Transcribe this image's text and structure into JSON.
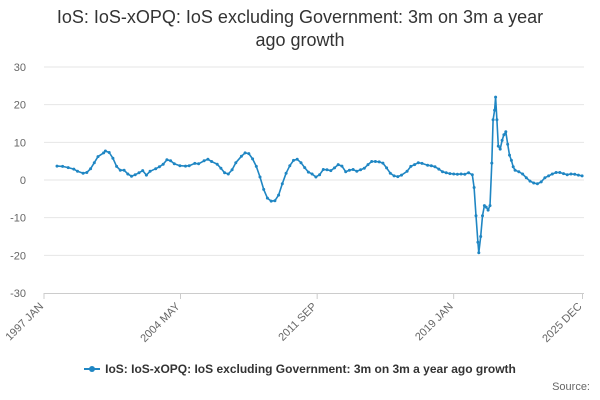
{
  "chart_data": {
    "type": "line",
    "title": "IoS: IoS-xOPQ: IoS excluding Government: 3m on 3m a year ago growth",
    "xlabel": "",
    "ylabel": "",
    "ylim": [
      -30,
      30
    ],
    "y_ticks": [
      30,
      20,
      10,
      0,
      -10,
      -20,
      -30
    ],
    "x_range": [
      1997.0,
      2026.0
    ],
    "x_ticks": [
      {
        "label": "1997 JAN",
        "x": 1997.0
      },
      {
        "label": "2004 MAY",
        "x": 2004.33
      },
      {
        "label": "2011 SEP",
        "x": 2011.67
      },
      {
        "label": "2019 JAN",
        "x": 2019.0
      },
      {
        "label": "2025 DEC",
        "x": 2025.92
      }
    ],
    "grid": true,
    "color": "#1f86c3",
    "series": [
      {
        "name": "IoS: IoS-xOPQ: IoS excluding Government: 3m on 3m a year ago growth",
        "points": [
          [
            1997.7,
            3.7
          ],
          [
            1998.0,
            3.6
          ],
          [
            1998.3,
            3.3
          ],
          [
            1998.6,
            2.9
          ],
          [
            1998.8,
            2.3
          ],
          [
            1999.1,
            1.8
          ],
          [
            1999.3,
            2.0
          ],
          [
            1999.5,
            3.0
          ],
          [
            1999.7,
            4.6
          ],
          [
            1999.9,
            6.2
          ],
          [
            2000.2,
            7.2
          ],
          [
            2000.3,
            7.7
          ],
          [
            2000.5,
            7.3
          ],
          [
            2000.7,
            5.8
          ],
          [
            2000.9,
            3.6
          ],
          [
            2001.1,
            2.6
          ],
          [
            2001.3,
            2.6
          ],
          [
            2001.5,
            1.6
          ],
          [
            2001.7,
            1.0
          ],
          [
            2001.9,
            1.4
          ],
          [
            2002.1,
            1.9
          ],
          [
            2002.3,
            2.5
          ],
          [
            2002.5,
            1.3
          ],
          [
            2002.7,
            2.3
          ],
          [
            2003.0,
            3.0
          ],
          [
            2003.2,
            3.5
          ],
          [
            2003.4,
            4.2
          ],
          [
            2003.6,
            5.4
          ],
          [
            2003.8,
            5.1
          ],
          [
            2004.0,
            4.3
          ],
          [
            2004.3,
            3.8
          ],
          [
            2004.6,
            3.7
          ],
          [
            2004.8,
            3.8
          ],
          [
            2005.1,
            4.4
          ],
          [
            2005.3,
            4.3
          ],
          [
            2005.6,
            5.1
          ],
          [
            2005.8,
            5.5
          ],
          [
            2006.0,
            4.9
          ],
          [
            2006.3,
            4.2
          ],
          [
            2006.5,
            3.1
          ],
          [
            2006.7,
            1.9
          ],
          [
            2006.9,
            1.6
          ],
          [
            2007.1,
            2.7
          ],
          [
            2007.3,
            4.6
          ],
          [
            2007.6,
            6.3
          ],
          [
            2007.8,
            7.2
          ],
          [
            2008.0,
            7.0
          ],
          [
            2008.2,
            5.6
          ],
          [
            2008.4,
            3.6
          ],
          [
            2008.6,
            0.8
          ],
          [
            2008.8,
            -2.5
          ],
          [
            2009.0,
            -4.8
          ],
          [
            2009.2,
            -5.6
          ],
          [
            2009.4,
            -5.5
          ],
          [
            2009.6,
            -4.0
          ],
          [
            2009.8,
            -1.0
          ],
          [
            2010.0,
            1.8
          ],
          [
            2010.2,
            3.8
          ],
          [
            2010.4,
            5.2
          ],
          [
            2010.6,
            5.5
          ],
          [
            2010.8,
            4.6
          ],
          [
            2011.0,
            3.3
          ],
          [
            2011.2,
            2.1
          ],
          [
            2011.4,
            1.6
          ],
          [
            2011.6,
            0.8
          ],
          [
            2011.8,
            1.4
          ],
          [
            2012.0,
            2.8
          ],
          [
            2012.2,
            2.7
          ],
          [
            2012.4,
            2.5
          ],
          [
            2012.6,
            3.2
          ],
          [
            2012.8,
            4.1
          ],
          [
            2013.0,
            3.7
          ],
          [
            2013.2,
            2.2
          ],
          [
            2013.4,
            2.6
          ],
          [
            2013.6,
            2.8
          ],
          [
            2013.8,
            2.3
          ],
          [
            2014.0,
            2.7
          ],
          [
            2014.2,
            3.1
          ],
          [
            2014.4,
            4.1
          ],
          [
            2014.6,
            4.9
          ],
          [
            2014.8,
            4.9
          ],
          [
            2015.0,
            4.8
          ],
          [
            2015.2,
            4.5
          ],
          [
            2015.4,
            3.2
          ],
          [
            2015.6,
            1.8
          ],
          [
            2015.8,
            1.1
          ],
          [
            2016.0,
            0.9
          ],
          [
            2016.2,
            1.3
          ],
          [
            2016.5,
            2.3
          ],
          [
            2016.7,
            3.6
          ],
          [
            2016.9,
            4.1
          ],
          [
            2017.1,
            4.6
          ],
          [
            2017.3,
            4.4
          ],
          [
            2017.6,
            3.9
          ],
          [
            2017.8,
            3.8
          ],
          [
            2018.0,
            3.5
          ],
          [
            2018.2,
            2.9
          ],
          [
            2018.4,
            2.2
          ],
          [
            2018.6,
            1.9
          ],
          [
            2018.8,
            1.7
          ],
          [
            2019.0,
            1.6
          ],
          [
            2019.2,
            1.5
          ],
          [
            2019.4,
            1.6
          ],
          [
            2019.6,
            1.5
          ],
          [
            2019.8,
            1.9
          ],
          [
            2020.0,
            1.4
          ],
          [
            2020.1,
            -2.0
          ],
          [
            2020.2,
            -9.5
          ],
          [
            2020.3,
            -16.5
          ],
          [
            2020.35,
            -19.3
          ],
          [
            2020.45,
            -15.0
          ],
          [
            2020.55,
            -9.5
          ],
          [
            2020.65,
            -6.8
          ],
          [
            2020.75,
            -7.2
          ],
          [
            2020.85,
            -8.0
          ],
          [
            2020.95,
            -6.8
          ],
          [
            2021.05,
            4.5
          ],
          [
            2021.12,
            16.0
          ],
          [
            2021.2,
            18.5
          ],
          [
            2021.25,
            22.0
          ],
          [
            2021.32,
            16.0
          ],
          [
            2021.4,
            9.0
          ],
          [
            2021.5,
            8.2
          ],
          [
            2021.6,
            10.5
          ],
          [
            2021.7,
            12.0
          ],
          [
            2021.8,
            12.8
          ],
          [
            2021.9,
            9.5
          ],
          [
            2022.0,
            6.6
          ],
          [
            2022.1,
            5.2
          ],
          [
            2022.2,
            3.5
          ],
          [
            2022.3,
            2.6
          ],
          [
            2022.5,
            2.2
          ],
          [
            2022.7,
            1.6
          ],
          [
            2022.9,
            0.6
          ],
          [
            2023.1,
            -0.3
          ],
          [
            2023.3,
            -0.8
          ],
          [
            2023.5,
            -1.0
          ],
          [
            2023.7,
            -0.5
          ],
          [
            2023.9,
            0.6
          ],
          [
            2024.1,
            1.1
          ],
          [
            2024.3,
            1.6
          ],
          [
            2024.5,
            2.0
          ],
          [
            2024.7,
            2.0
          ],
          [
            2024.9,
            1.7
          ],
          [
            2025.1,
            1.4
          ],
          [
            2025.3,
            1.6
          ],
          [
            2025.5,
            1.5
          ],
          [
            2025.7,
            1.3
          ],
          [
            2025.9,
            1.1
          ]
        ]
      }
    ]
  },
  "legend": {
    "label": "IoS: IoS-xOPQ: IoS excluding Government: 3m on 3m a year ago growth"
  },
  "footer": {
    "source_label": "Source:"
  }
}
